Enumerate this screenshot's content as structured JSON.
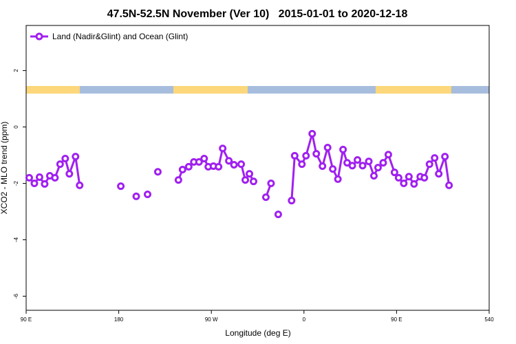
{
  "chart_data": {
    "type": "line",
    "title": "47.5N-52.5N November (Ver 10)   2015-01-01 to 2020-12-18",
    "x_label": "Longitude (deg E)",
    "y_label": "XCO2 - MLO trend (ppm)",
    "xlim": [
      90,
      540
    ],
    "xticks": [
      {
        "value": 90,
        "label": "90 E"
      },
      180,
      {
        "value": 270,
        "label": "90 W"
      },
      {
        "value": 360,
        "label": "0"
      },
      {
        "value": 450,
        "label": "90 E"
      },
      540
    ],
    "ylim": [
      -6.5,
      3.6
    ],
    "yticks": [
      2,
      0,
      -2,
      -4,
      -6
    ],
    "grid": false,
    "legend": "top-left",
    "series": [
      {
        "name": "Land (Nadir&Glint) and Ocean (Glint)",
        "color": "#a020f0",
        "x": [
          93,
          98,
          103,
          108,
          113,
          118,
          123,
          128,
          132,
          138,
          142,
          null,
          182,
          null,
          197,
          null,
          208,
          null,
          218,
          null,
          238,
          242,
          248,
          253,
          258,
          263,
          267,
          272,
          277,
          281,
          287,
          292,
          299,
          303,
          307,
          311,
          null,
          323,
          328,
          null,
          335,
          null,
          348,
          351,
          358,
          362,
          368,
          372,
          378,
          383,
          388,
          393,
          398,
          402,
          407,
          412,
          417,
          423,
          428,
          432,
          437,
          442,
          448,
          452,
          457,
          462,
          467,
          473,
          477,
          482,
          487,
          491,
          497,
          501
        ],
        "values": [
          -1.8,
          -2.0,
          -1.78,
          -2.02,
          -1.73,
          -1.8,
          -1.32,
          -1.12,
          -1.66,
          -1.05,
          -2.07,
          null,
          -2.1,
          null,
          -2.46,
          null,
          -2.39,
          null,
          -1.59,
          null,
          -1.88,
          -1.51,
          -1.41,
          -1.24,
          -1.24,
          -1.12,
          -1.41,
          -1.39,
          -1.41,
          -0.76,
          -1.2,
          -1.34,
          -1.32,
          -1.88,
          -1.66,
          -1.93,
          null,
          -2.49,
          -2.0,
          null,
          -3.1,
          null,
          -2.61,
          -1.02,
          -1.32,
          -1.02,
          -0.24,
          -0.95,
          -1.39,
          -0.73,
          -1.49,
          -1.85,
          -0.8,
          -1.27,
          -1.37,
          -1.17,
          -1.37,
          -1.22,
          -1.73,
          -1.44,
          -1.27,
          -0.98,
          -1.61,
          -1.8,
          -2.0,
          -1.76,
          -2.02,
          -1.76,
          -1.8,
          -1.32,
          -1.1,
          -1.66,
          -1.05,
          -2.07
        ]
      }
    ]
  }
}
